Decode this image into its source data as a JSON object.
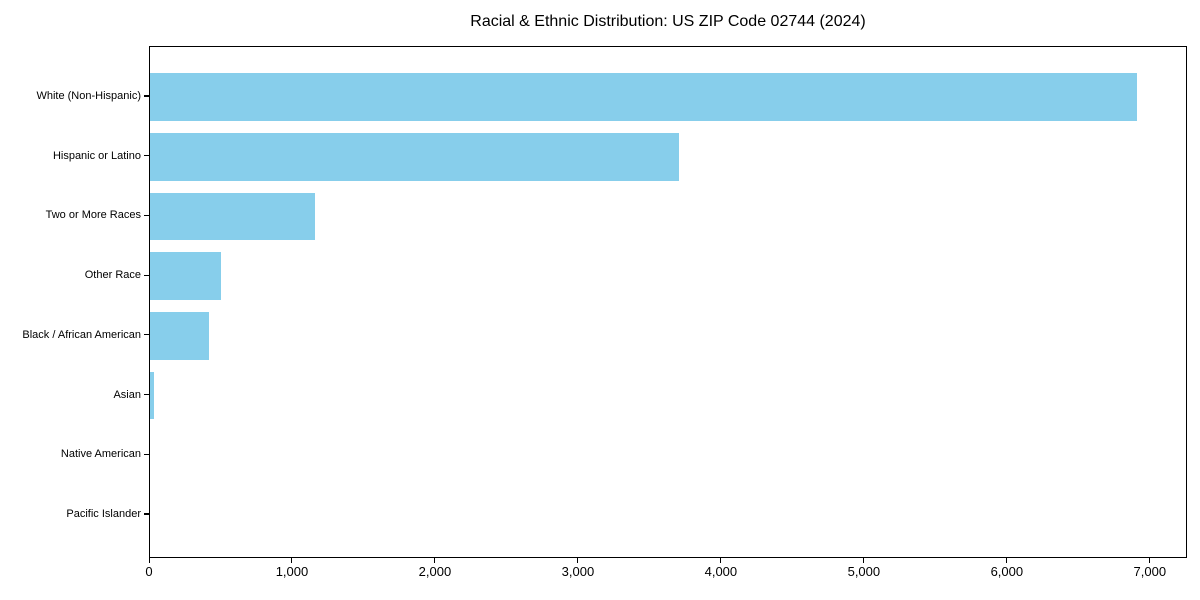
{
  "chart_data": {
    "type": "bar",
    "orientation": "horizontal",
    "title": "Racial & Ethnic Distribution: US ZIP Code 02744 (2024)",
    "categories": [
      "White (Non-Hispanic)",
      "Hispanic or Latino",
      "Two or More Races",
      "Other Race",
      "Black / African American",
      "Asian",
      "Native American",
      "Pacific Islander"
    ],
    "values": [
      6905,
      3700,
      1155,
      500,
      415,
      30,
      0,
      0
    ],
    "xlabel": "",
    "ylabel": "",
    "xlim": [
      0,
      7260
    ],
    "xticks": {
      "values": [
        0,
        1000,
        2000,
        3000,
        4000,
        5000,
        6000,
        7000
      ],
      "labels": [
        "0",
        "1,000",
        "2,000",
        "3,000",
        "4,000",
        "5,000",
        "6,000",
        "7,000"
      ]
    },
    "grid": false,
    "legend": "none",
    "bar_color": "#87CEEB",
    "axis_color": "#000000",
    "background": "#ffffff"
  }
}
